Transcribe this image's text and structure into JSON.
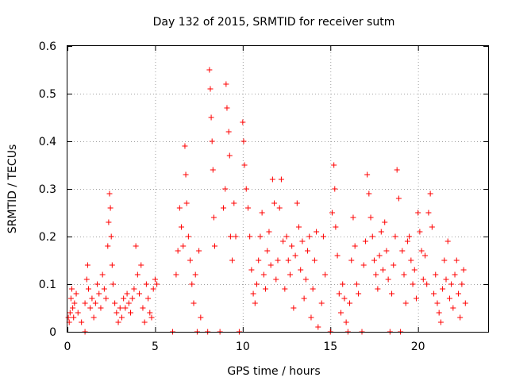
{
  "chart_data": {
    "type": "scatter",
    "title": "Day 132 of 2015, SRMTID for receiver sutm",
    "xlabel": "GPS time / hours",
    "ylabel": "SRMTID / TECUs",
    "xlim": [
      0,
      24
    ],
    "ylim": [
      0,
      0.6
    ],
    "xticks": [
      0,
      5,
      10,
      15,
      20
    ],
    "xtick_labels": [
      "0",
      "5",
      "10",
      "15",
      "20"
    ],
    "yticks": [
      0,
      0.1,
      0.2,
      0.3,
      0.4,
      0.5,
      0.6
    ],
    "ytick_labels": [
      "0",
      "0.1",
      "0.2",
      "0.3",
      "0.4",
      "0.5",
      "0.6"
    ],
    "grid": true,
    "marker": "+",
    "color": "#ff0000",
    "series": [
      {
        "name": "SRMTID",
        "points": [
          [
            0.05,
            0.03
          ],
          [
            0.1,
            0.02
          ],
          [
            0.15,
            0.04
          ],
          [
            0.2,
            0.07
          ],
          [
            0.25,
            0.09
          ],
          [
            0.3,
            0.05
          ],
          [
            0.35,
            0.03
          ],
          [
            0.4,
            0.06
          ],
          [
            0.5,
            0.08
          ],
          [
            0.6,
            0.04
          ],
          [
            0.8,
            0.02
          ],
          [
            1.0,
            0.0
          ],
          [
            1.0,
            0.06
          ],
          [
            1.1,
            0.11
          ],
          [
            1.15,
            0.14
          ],
          [
            1.2,
            0.09
          ],
          [
            1.3,
            0.05
          ],
          [
            1.4,
            0.07
          ],
          [
            1.5,
            0.03
          ],
          [
            1.6,
            0.06
          ],
          [
            1.7,
            0.1
          ],
          [
            1.8,
            0.08
          ],
          [
            1.9,
            0.05
          ],
          [
            2.0,
            0.12
          ],
          [
            2.1,
            0.09
          ],
          [
            2.2,
            0.07
          ],
          [
            2.3,
            0.18
          ],
          [
            2.35,
            0.23
          ],
          [
            2.4,
            0.29
          ],
          [
            2.45,
            0.26
          ],
          [
            2.5,
            0.2
          ],
          [
            2.55,
            0.14
          ],
          [
            2.6,
            0.1
          ],
          [
            2.7,
            0.06
          ],
          [
            2.8,
            0.04
          ],
          [
            2.9,
            0.02
          ],
          [
            3.0,
            0.05
          ],
          [
            3.1,
            0.03
          ],
          [
            3.2,
            0.07
          ],
          [
            3.3,
            0.05
          ],
          [
            3.4,
            0.08
          ],
          [
            3.5,
            0.06
          ],
          [
            3.6,
            0.04
          ],
          [
            3.7,
            0.07
          ],
          [
            3.8,
            0.09
          ],
          [
            3.9,
            0.18
          ],
          [
            4.0,
            0.12
          ],
          [
            4.1,
            0.08
          ],
          [
            4.2,
            0.14
          ],
          [
            4.3,
            0.05
          ],
          [
            4.4,
            0.02
          ],
          [
            4.5,
            0.1
          ],
          [
            4.6,
            0.07
          ],
          [
            4.7,
            0.04
          ],
          [
            4.8,
            0.03
          ],
          [
            4.9,
            0.09
          ],
          [
            5.0,
            0.11
          ],
          [
            5.1,
            0.1
          ],
          [
            6.0,
            0.0
          ],
          [
            6.2,
            0.12
          ],
          [
            6.3,
            0.17
          ],
          [
            6.4,
            0.26
          ],
          [
            6.5,
            0.22
          ],
          [
            6.6,
            0.18
          ],
          [
            6.7,
            0.39
          ],
          [
            6.75,
            0.33
          ],
          [
            6.8,
            0.27
          ],
          [
            6.9,
            0.2
          ],
          [
            7.0,
            0.15
          ],
          [
            7.1,
            0.1
          ],
          [
            7.2,
            0.06
          ],
          [
            7.3,
            0.12
          ],
          [
            7.4,
            0.0
          ],
          [
            7.5,
            0.17
          ],
          [
            7.6,
            0.03
          ],
          [
            8.0,
            0.0
          ],
          [
            8.1,
            0.55
          ],
          [
            8.15,
            0.51
          ],
          [
            8.2,
            0.45
          ],
          [
            8.25,
            0.4
          ],
          [
            8.3,
            0.34
          ],
          [
            8.35,
            0.24
          ],
          [
            8.4,
            0.18
          ],
          [
            8.7,
            0.0
          ],
          [
            8.9,
            0.26
          ],
          [
            9.0,
            0.3
          ],
          [
            9.05,
            0.52
          ],
          [
            9.1,
            0.47
          ],
          [
            9.2,
            0.42
          ],
          [
            9.25,
            0.37
          ],
          [
            9.3,
            0.2
          ],
          [
            9.4,
            0.15
          ],
          [
            9.5,
            0.27
          ],
          [
            9.6,
            0.2
          ],
          [
            9.8,
            0.0
          ],
          [
            10.0,
            0.44
          ],
          [
            10.05,
            0.4
          ],
          [
            10.1,
            0.35
          ],
          [
            10.2,
            0.3
          ],
          [
            10.3,
            0.26
          ],
          [
            10.4,
            0.2
          ],
          [
            10.5,
            0.13
          ],
          [
            10.6,
            0.08
          ],
          [
            10.7,
            0.06
          ],
          [
            10.8,
            0.1
          ],
          [
            10.9,
            0.15
          ],
          [
            11.0,
            0.2
          ],
          [
            11.1,
            0.25
          ],
          [
            11.2,
            0.12
          ],
          [
            11.3,
            0.09
          ],
          [
            11.4,
            0.17
          ],
          [
            11.5,
            0.21
          ],
          [
            11.6,
            0.14
          ],
          [
            11.7,
            0.32
          ],
          [
            11.8,
            0.27
          ],
          [
            11.9,
            0.11
          ],
          [
            12.0,
            0.15
          ],
          [
            12.1,
            0.26
          ],
          [
            12.2,
            0.32
          ],
          [
            12.3,
            0.19
          ],
          [
            12.4,
            0.09
          ],
          [
            12.5,
            0.2
          ],
          [
            12.6,
            0.15
          ],
          [
            12.7,
            0.12
          ],
          [
            12.8,
            0.18
          ],
          [
            12.9,
            0.05
          ],
          [
            13.0,
            0.16
          ],
          [
            13.1,
            0.27
          ],
          [
            13.2,
            0.22
          ],
          [
            13.3,
            0.13
          ],
          [
            13.4,
            0.19
          ],
          [
            13.5,
            0.07
          ],
          [
            13.6,
            0.11
          ],
          [
            13.7,
            0.17
          ],
          [
            13.8,
            0.2
          ],
          [
            13.9,
            0.03
          ],
          [
            14.0,
            0.09
          ],
          [
            14.1,
            0.15
          ],
          [
            14.2,
            0.21
          ],
          [
            14.3,
            0.01
          ],
          [
            14.5,
            0.06
          ],
          [
            14.6,
            0.2
          ],
          [
            14.7,
            0.12
          ],
          [
            15.0,
            0.0
          ],
          [
            15.1,
            0.25
          ],
          [
            15.2,
            0.35
          ],
          [
            15.25,
            0.3
          ],
          [
            15.3,
            0.22
          ],
          [
            15.4,
            0.16
          ],
          [
            15.5,
            0.08
          ],
          [
            15.6,
            0.04
          ],
          [
            15.7,
            0.1
          ],
          [
            15.8,
            0.07
          ],
          [
            15.9,
            0.02
          ],
          [
            16.0,
            0.0
          ],
          [
            16.1,
            0.06
          ],
          [
            16.2,
            0.15
          ],
          [
            16.3,
            0.24
          ],
          [
            16.4,
            0.18
          ],
          [
            16.5,
            0.1
          ],
          [
            16.6,
            0.08
          ],
          [
            16.8,
            0.0
          ],
          [
            16.9,
            0.14
          ],
          [
            17.0,
            0.19
          ],
          [
            17.1,
            0.33
          ],
          [
            17.2,
            0.29
          ],
          [
            17.3,
            0.24
          ],
          [
            17.4,
            0.2
          ],
          [
            17.5,
            0.15
          ],
          [
            17.6,
            0.12
          ],
          [
            17.7,
            0.09
          ],
          [
            17.8,
            0.16
          ],
          [
            17.9,
            0.21
          ],
          [
            18.0,
            0.13
          ],
          [
            18.1,
            0.23
          ],
          [
            18.2,
            0.17
          ],
          [
            18.3,
            0.11
          ],
          [
            18.4,
            0.0
          ],
          [
            18.5,
            0.08
          ],
          [
            18.6,
            0.14
          ],
          [
            18.7,
            0.2
          ],
          [
            18.8,
            0.34
          ],
          [
            18.9,
            0.28
          ],
          [
            19.0,
            0.0
          ],
          [
            19.1,
            0.17
          ],
          [
            19.2,
            0.12
          ],
          [
            19.3,
            0.06
          ],
          [
            19.4,
            0.19
          ],
          [
            19.5,
            0.2
          ],
          [
            19.6,
            0.15
          ],
          [
            19.7,
            0.1
          ],
          [
            19.8,
            0.13
          ],
          [
            19.9,
            0.07
          ],
          [
            20.0,
            0.25
          ],
          [
            20.1,
            0.21
          ],
          [
            20.2,
            0.17
          ],
          [
            20.3,
            0.11
          ],
          [
            20.4,
            0.16
          ],
          [
            20.5,
            0.1
          ],
          [
            20.6,
            0.25
          ],
          [
            20.7,
            0.29
          ],
          [
            20.8,
            0.22
          ],
          [
            20.9,
            0.08
          ],
          [
            21.0,
            0.12
          ],
          [
            21.1,
            0.06
          ],
          [
            21.2,
            0.04
          ],
          [
            21.3,
            0.02
          ],
          [
            21.4,
            0.09
          ],
          [
            21.5,
            0.15
          ],
          [
            21.6,
            0.11
          ],
          [
            21.7,
            0.19
          ],
          [
            21.8,
            0.07
          ],
          [
            21.9,
            0.1
          ],
          [
            22.0,
            0.05
          ],
          [
            22.1,
            0.12
          ],
          [
            22.2,
            0.15
          ],
          [
            22.3,
            0.08
          ],
          [
            22.4,
            0.03
          ],
          [
            22.5,
            0.1
          ],
          [
            22.6,
            0.13
          ],
          [
            22.7,
            0.06
          ]
        ]
      }
    ]
  }
}
